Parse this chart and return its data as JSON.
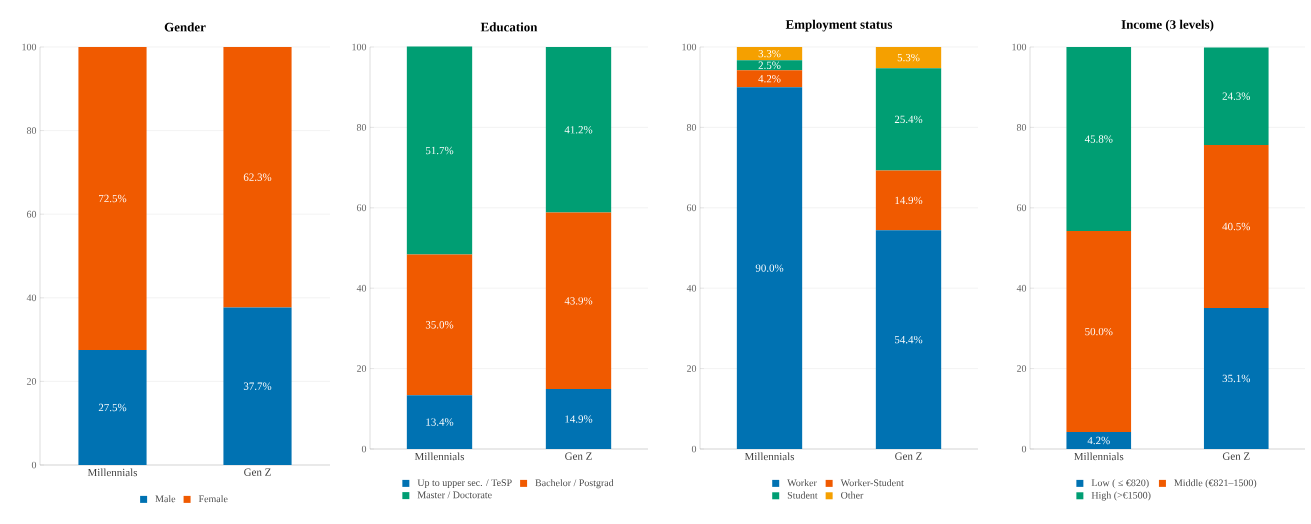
{
  "chart_data": [
    {
      "type": "bar",
      "stacked": true,
      "title": "Gender",
      "categories": [
        "Millennials",
        "Gen Z"
      ],
      "ylim": [
        0,
        100
      ],
      "yticks": [
        0,
        20,
        40,
        60,
        80,
        100
      ],
      "grid": "y",
      "legend": "bottom",
      "series": [
        {
          "name": "Male",
          "color": "#0072b2",
          "values": [
            27.5,
            37.7
          ],
          "value_labels": [
            "27.5%",
            "37.7%"
          ]
        },
        {
          "name": "Female",
          "color": "#f05a00",
          "values": [
            72.5,
            62.3
          ],
          "value_labels": [
            "72.5%",
            "62.3%"
          ]
        }
      ]
    },
    {
      "type": "bar",
      "stacked": true,
      "title": "Education",
      "categories": [
        "Millennials",
        "Gen Z"
      ],
      "ylim": [
        0,
        100
      ],
      "yticks": [
        0,
        20,
        40,
        60,
        80,
        100
      ],
      "grid": "y",
      "legend": "bottom",
      "series": [
        {
          "name": "Up to upper sec. / TeSP",
          "color": "#0072b2",
          "values": [
            13.4,
            14.9
          ],
          "value_labels": [
            "13.4%",
            "14.9%"
          ]
        },
        {
          "name": "Bachelor / Postgrad",
          "color": "#f05a00",
          "values": [
            35.0,
            43.9
          ],
          "value_labels": [
            "35.0%",
            "43.9%"
          ]
        },
        {
          "name": "Master / Doctorate",
          "color": "#009e73",
          "values": [
            51.7,
            41.2
          ],
          "value_labels": [
            "51.7%",
            "41.2%"
          ]
        }
      ]
    },
    {
      "type": "bar",
      "stacked": true,
      "title": "Employment status",
      "categories": [
        "Millennials",
        "Gen Z"
      ],
      "ylim": [
        0,
        100
      ],
      "yticks": [
        0,
        20,
        40,
        60,
        80,
        100
      ],
      "grid": "y",
      "legend": "bottom",
      "series": [
        {
          "name": "Worker",
          "color": "#0072b2",
          "values": [
            90.0,
            54.4
          ],
          "value_labels": [
            "90.0%",
            "54.4%"
          ]
        },
        {
          "name": "Worker-Student",
          "color": "#f05a00",
          "values": [
            4.2,
            14.9
          ],
          "value_labels": [
            "4.2%",
            "14.9%"
          ]
        },
        {
          "name": "Student",
          "color": "#009e73",
          "values": [
            2.5,
            25.4
          ],
          "value_labels": [
            "2.5%",
            "25.4%"
          ]
        },
        {
          "name": "Other",
          "color": "#f5a000",
          "values": [
            3.3,
            5.3
          ],
          "value_labels": [
            "3.3%",
            "5.3%"
          ]
        }
      ]
    },
    {
      "type": "bar",
      "stacked": true,
      "title": "Income (3 levels)",
      "categories": [
        "Millennials",
        "Gen Z"
      ],
      "ylim": [
        0,
        100
      ],
      "yticks": [
        0,
        20,
        40,
        60,
        80,
        100
      ],
      "grid": "y",
      "legend": "bottom",
      "series": [
        {
          "name": "Low ( ≤ €820)",
          "color": "#0072b2",
          "values": [
            4.2,
            35.1
          ],
          "value_labels": [
            "4.2%",
            "35.1%"
          ]
        },
        {
          "name": "Middle (€821–1500)",
          "color": "#f05a00",
          "values": [
            50.0,
            40.5
          ],
          "value_labels": [
            "50.0%",
            "40.5%"
          ]
        },
        {
          "name": "High (>€1500)",
          "color": "#009e73",
          "values": [
            45.8,
            24.3
          ],
          "value_labels": [
            "45.8%",
            "24.3%"
          ]
        }
      ]
    }
  ]
}
